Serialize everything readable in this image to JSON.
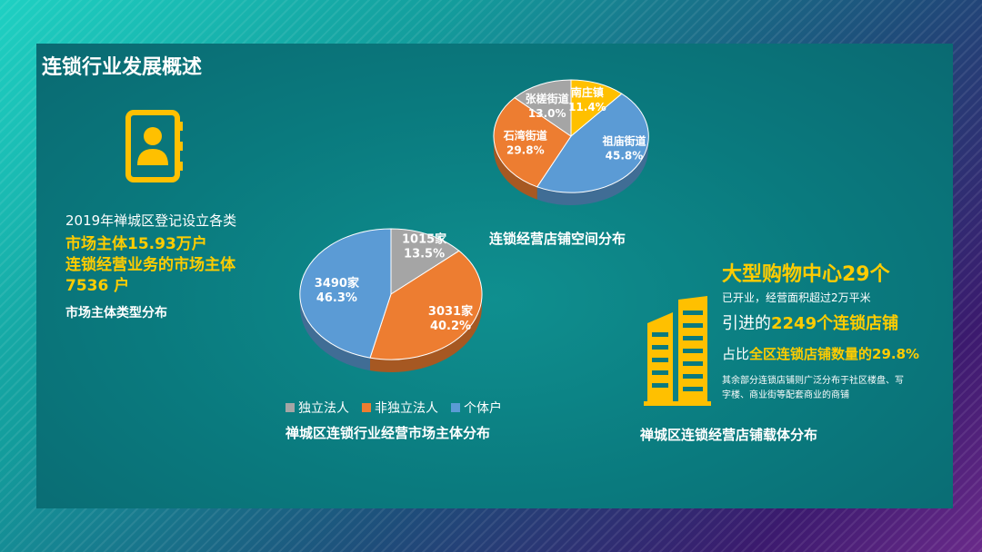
{
  "title": "连锁行业发展概述",
  "left_block": {
    "line1": "2019年禅城区登记设立各类",
    "line2": "市场主体15.93万户",
    "line3": "连锁经营业务的市场主体",
    "line4": "7536 户",
    "caption": "市场主体类型分布"
  },
  "right_block": {
    "headline": "大型购物中心29个",
    "sub": "已开业，经营面积超过2万平米",
    "intro_prefix": "引进的",
    "intro_highlight": "2249个连锁店铺",
    "share_prefix": "占比",
    "share_highlight": "全区连锁店铺数量的29.8%",
    "note1": "其余部分连锁店铺则广泛分布于社区楼盘、写",
    "note2": "字楼、商业街等配套商业的商铺",
    "caption": "禅城区连锁经营店铺载体分布"
  },
  "colors": {
    "gray": "#a5a5a5",
    "orange": "#ed7d31",
    "blue": "#5b9bd5",
    "yellow": "#ffc000",
    "highlight": "#ffcc00"
  },
  "chart_data": [
    {
      "type": "pie",
      "title": "禅城区连锁行业经营市场主体分布",
      "labels": [
        "独立法人",
        "非独立法人",
        "个体户"
      ],
      "values": [
        1015,
        3031,
        3490
      ],
      "value_labels": [
        "1015家",
        "3031家",
        "3490家"
      ],
      "percent_labels": [
        "13.5%",
        "40.2%",
        "46.3%"
      ],
      "colors": [
        "#a5a5a5",
        "#ed7d31",
        "#5b9bd5"
      ],
      "legend": "bottom"
    },
    {
      "type": "pie",
      "title": "连锁经营店铺空间分布",
      "labels": [
        "南庄镇",
        "祖庙街道",
        "石湾街道",
        "张槎街道"
      ],
      "percents": [
        11.4,
        45.8,
        29.8,
        13.0
      ],
      "percent_labels": [
        "11.4%",
        "45.8%",
        "29.8%",
        "13.0%"
      ],
      "colors": [
        "#ffc000",
        "#5b9bd5",
        "#ed7d31",
        "#a5a5a5"
      ]
    }
  ]
}
